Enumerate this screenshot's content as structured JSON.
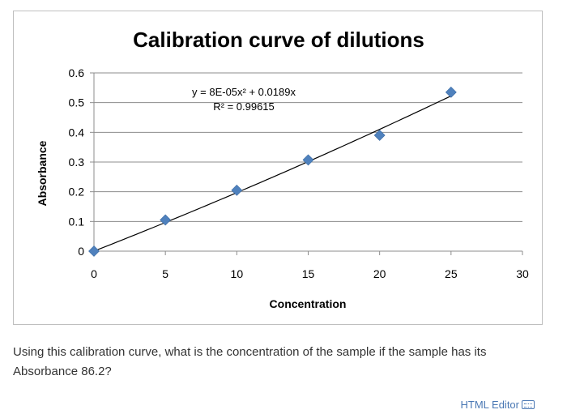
{
  "chart_data": {
    "type": "scatter",
    "title": "Calibration curve of dilutions",
    "xlabel": "Concentration",
    "ylabel": "Absorbance",
    "xlim": [
      0,
      30
    ],
    "ylim": [
      0,
      0.6
    ],
    "xticks": [
      0,
      5,
      10,
      15,
      20,
      25,
      30
    ],
    "yticks": [
      0,
      0.1,
      0.2,
      0.3,
      0.4,
      0.5,
      0.6
    ],
    "xtick_labels": [
      "0",
      "5",
      "10",
      "15",
      "20",
      "25",
      "30"
    ],
    "ytick_labels": [
      "0",
      "0.1",
      "0.2",
      "0.3",
      "0.4",
      "0.5",
      "0.6"
    ],
    "grid": "horizontal",
    "series": [
      {
        "x": [
          0,
          5,
          10,
          15,
          20,
          25
        ],
        "y": [
          0,
          0.105,
          0.205,
          0.307,
          0.39,
          0.535
        ],
        "marker": "diamond",
        "color": "#4f81bd"
      }
    ],
    "trendline": {
      "type": "polynomial",
      "a2": 8e-05,
      "a1": 0.0189,
      "a0": 0,
      "color": "#000000"
    },
    "annotations": {
      "equation": "y = 8E-05x² + 0.0189x",
      "r_squared": "R² = 0.99615"
    }
  },
  "question": {
    "text": "Using this calibration curve, what is the concentration of the sample if the sample has its Absorbance 86.2?"
  },
  "footer": {
    "editor_label": "HTML Editor",
    "editor_icon": "keyboard-icon"
  }
}
